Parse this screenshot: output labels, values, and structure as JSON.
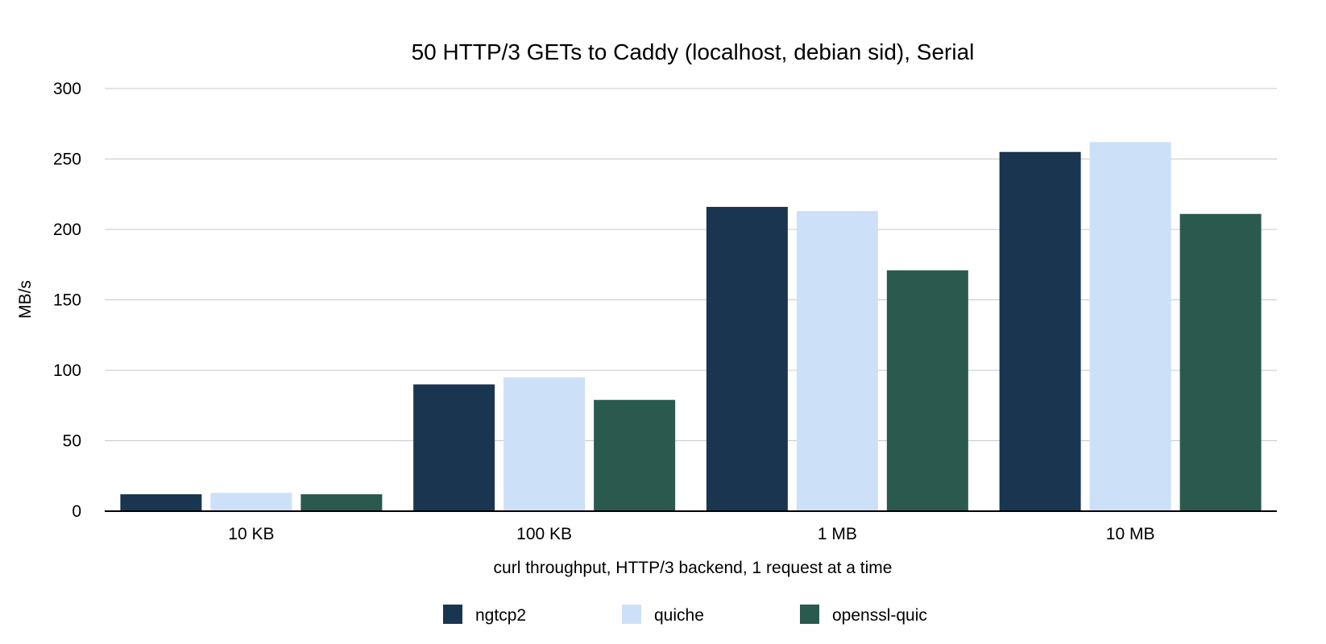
{
  "chart_data": {
    "type": "bar",
    "title": "50 HTTP/3 GETs to Caddy (localhost, debian sid), Serial",
    "xlabel": "curl throughput, HTTP/3 backend, 1 request at a time",
    "ylabel": "MB/s",
    "categories": [
      "10 KB",
      "100 KB",
      "1 MB",
      "10 MB"
    ],
    "ylim": [
      0,
      300
    ],
    "yticks": [
      "0",
      "50",
      "100",
      "150",
      "200",
      "250",
      "300"
    ],
    "grid": true,
    "legend_position": "bottom",
    "series": [
      {
        "name": "ngtcp2",
        "color": "#1a3550",
        "values": [
          12,
          90,
          216,
          255
        ]
      },
      {
        "name": "quiche",
        "color": "#cce0f8",
        "values": [
          13,
          95,
          213,
          262
        ]
      },
      {
        "name": "openssl-quic",
        "color": "#2a5a4e",
        "values": [
          12,
          79,
          171,
          211
        ]
      }
    ]
  }
}
